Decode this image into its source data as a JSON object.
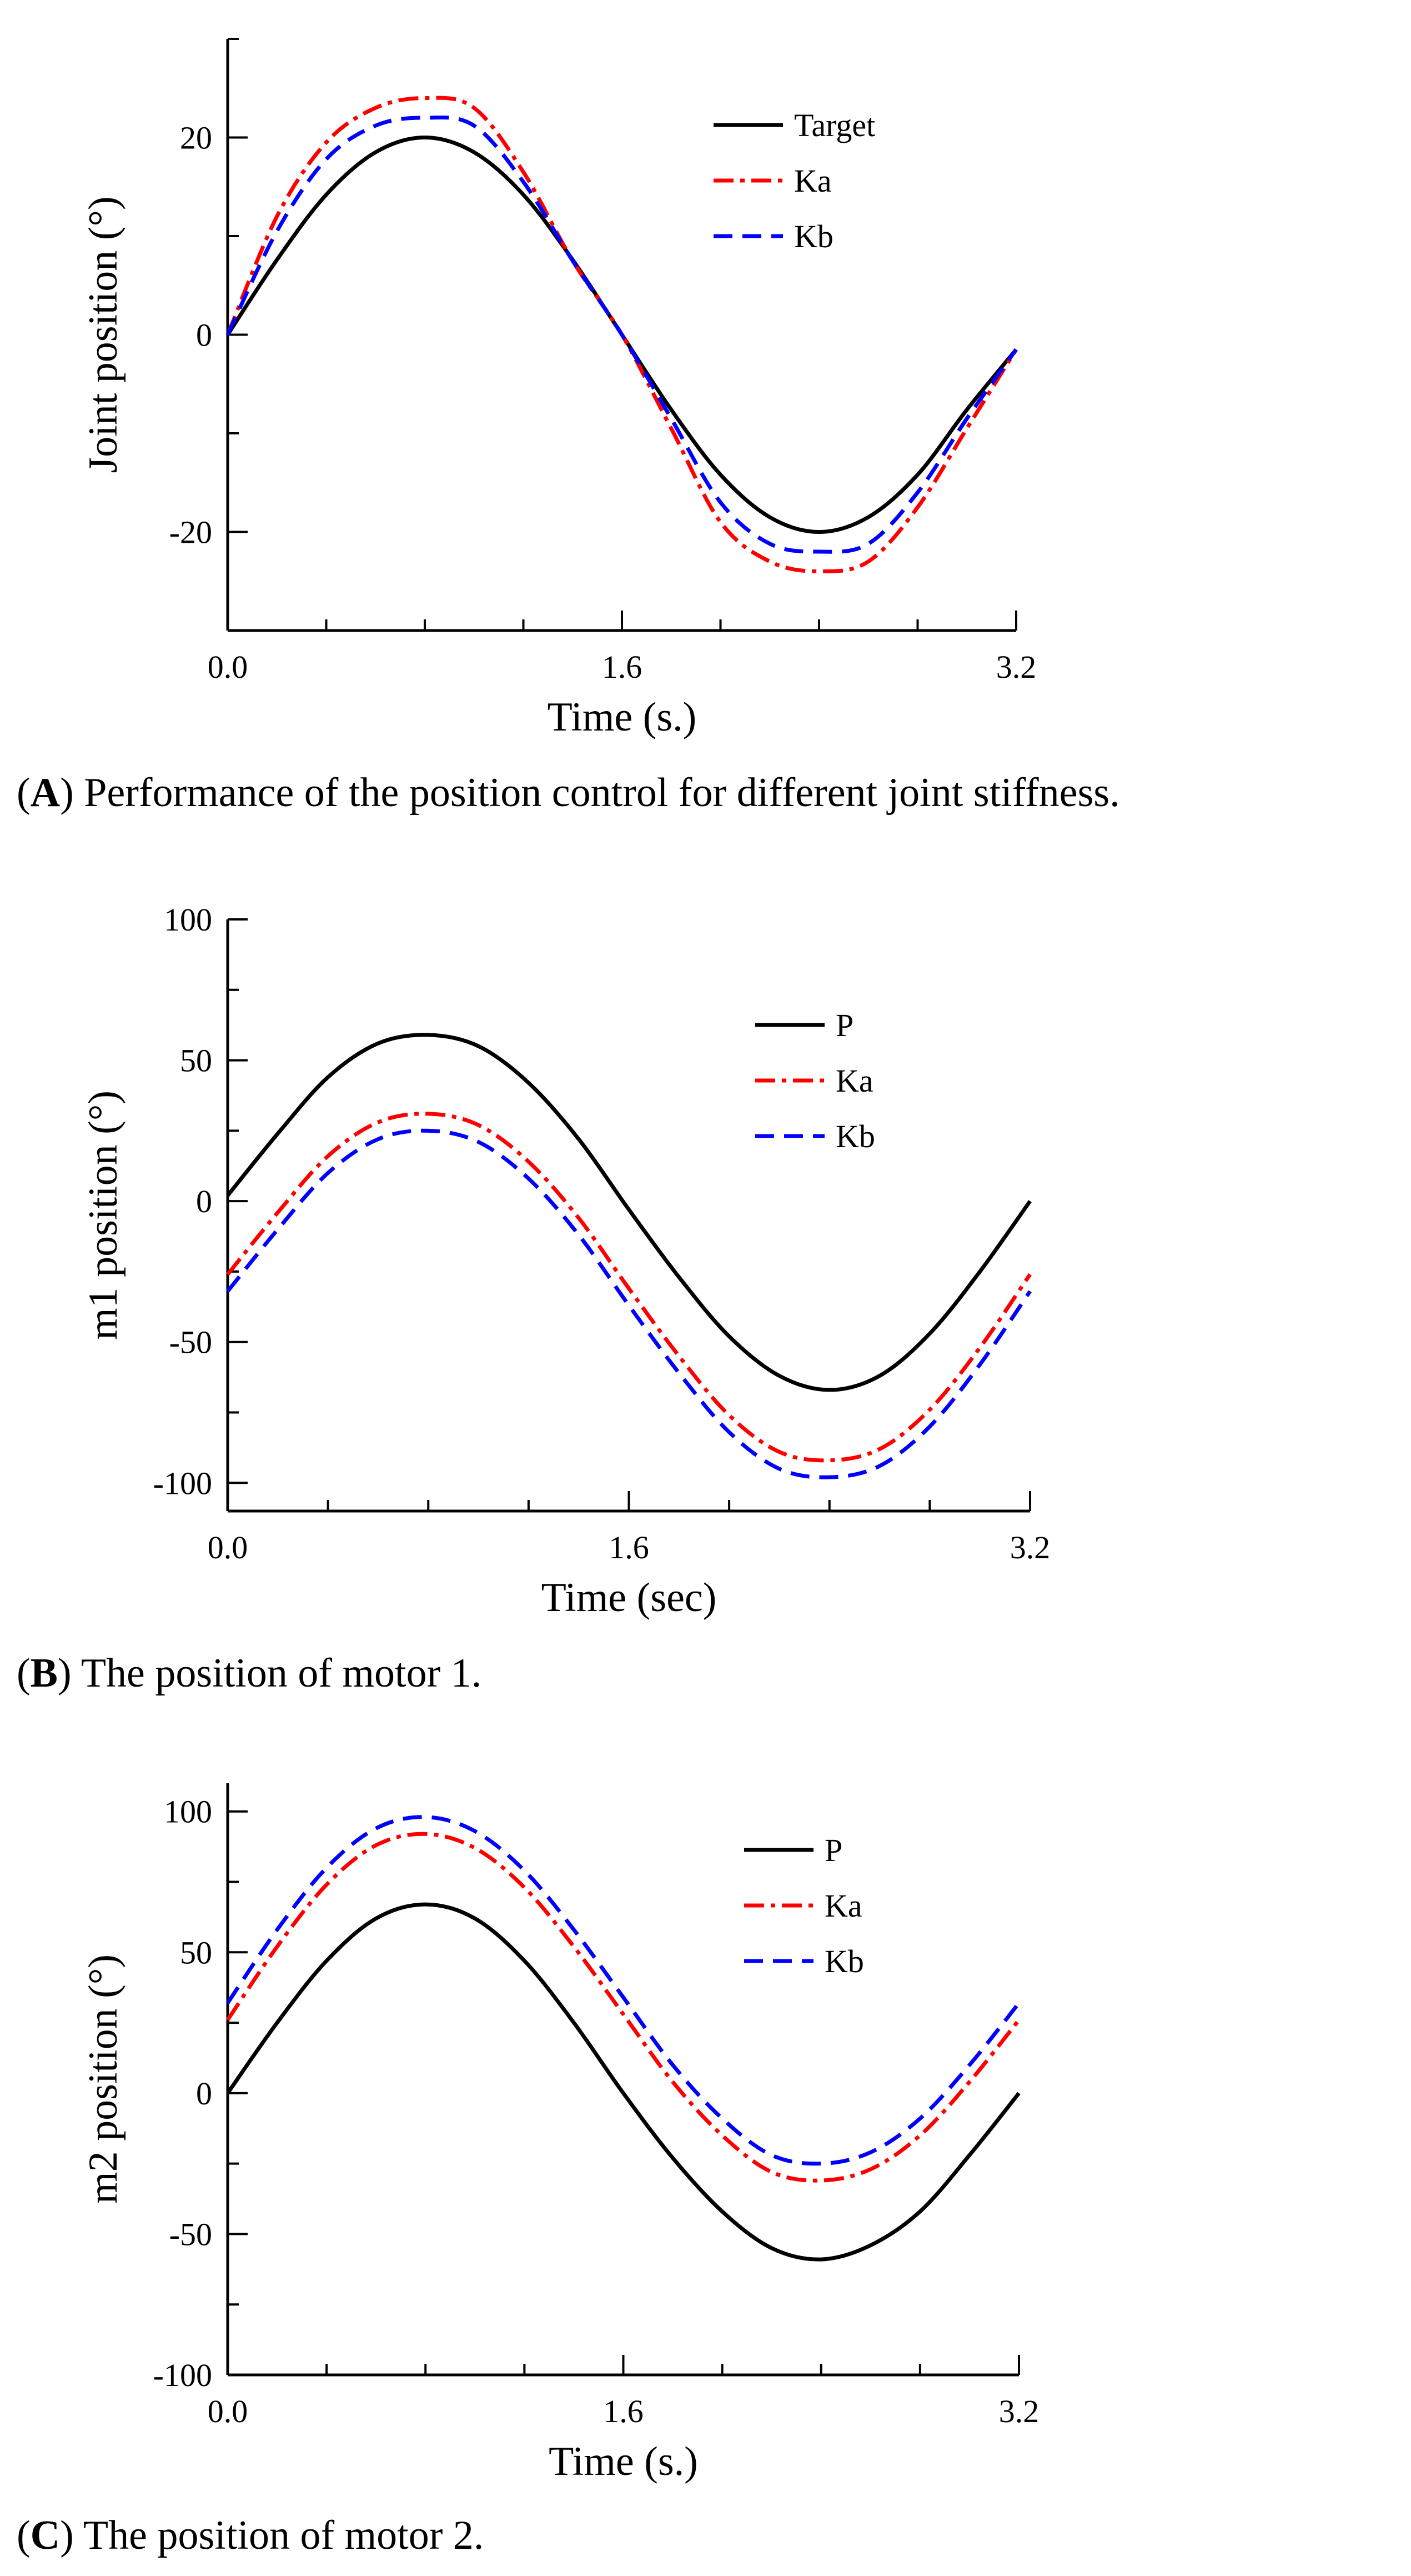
{
  "colors": {
    "black": "#000000",
    "red": "#ff0000",
    "blue": "#0000ff"
  },
  "panels": [
    {
      "caption_letter": "A",
      "caption_text": "Performance of the position control for different joint stiffness.",
      "chart_data": {
        "type": "line",
        "xlabel": "Time (s.)",
        "ylabel": "Joint position (°)",
        "xlim": [
          0,
          3.2
        ],
        "ylim": [
          -30,
          30
        ],
        "xticks": [
          0.0,
          1.6,
          3.2
        ],
        "xtick_labels": [
          "0.0",
          "1.6",
          "3.2"
        ],
        "yticks": [
          20,
          0,
          -20
        ],
        "ytick_labels": [
          "20",
          "0",
          "-20"
        ],
        "legend_position": "top-right",
        "series": [
          {
            "name": "Target",
            "style": "solid",
            "color": "#000000",
            "x": [
              0,
              0.2,
              0.4,
              0.6,
              0.8,
              1.0,
              1.2,
              1.4,
              1.6,
              1.8,
              2.0,
              2.2,
              2.4,
              2.6,
              2.8,
              3.0,
              3.2
            ],
            "y": [
              0,
              7.6,
              14.2,
              18.5,
              20.0,
              18.5,
              14.2,
              7.6,
              0,
              -7.6,
              -14.2,
              -18.5,
              -20.0,
              -18.5,
              -14.2,
              -7.6,
              -1.5
            ]
          },
          {
            "name": "Ka",
            "style": "dashdot",
            "color": "#ff0000",
            "x": [
              0,
              0.2,
              0.4,
              0.6,
              0.8,
              1.0,
              1.2,
              1.4,
              1.6,
              1.8,
              2.0,
              2.2,
              2.4,
              2.6,
              2.8,
              3.0,
              3.2
            ],
            "y": [
              0,
              12.0,
              19.5,
              23.0,
              24.0,
              23.0,
              16.5,
              7.5,
              0,
              -9.5,
              -19.0,
              -23.0,
              -24.0,
              -23.0,
              -17.5,
              -9.5,
              -1.5
            ]
          },
          {
            "name": "Kb",
            "style": "dashed",
            "color": "#0000ff",
            "x": [
              0,
              0.2,
              0.4,
              0.6,
              0.8,
              1.0,
              1.2,
              1.4,
              1.6,
              1.8,
              2.0,
              2.2,
              2.4,
              2.6,
              2.8,
              3.0,
              3.2
            ],
            "y": [
              0,
              10.5,
              17.8,
              21.2,
              22.0,
              21.2,
              15.5,
              7.5,
              0,
              -8.5,
              -17.0,
              -21.2,
              -22.0,
              -21.2,
              -16.0,
              -8.5,
              -1.5
            ]
          }
        ]
      }
    },
    {
      "caption_letter": "B",
      "caption_text": "The position of motor 1.",
      "chart_data": {
        "type": "line",
        "xlabel": "Time (sec)",
        "ylabel": "m1 position (°)",
        "xlim": [
          0,
          3.2
        ],
        "ylim": [
          -110,
          100
        ],
        "xticks": [
          0.0,
          1.6,
          3.2
        ],
        "xtick_labels": [
          "0.0",
          "1.6",
          "3.2"
        ],
        "yticks": [
          100,
          50,
          0,
          -50,
          -100
        ],
        "ytick_labels": [
          "100",
          "50",
          "0",
          "-50",
          "-100"
        ],
        "legend_position": "top-right",
        "series": [
          {
            "name": "P",
            "style": "solid",
            "color": "#000000",
            "x": [
              0,
              0.2,
              0.4,
              0.6,
              0.8,
              1.0,
              1.2,
              1.4,
              1.6,
              1.8,
              2.0,
              2.2,
              2.4,
              2.6,
              2.8,
              3.0,
              3.2
            ],
            "y": [
              2,
              24,
              44,
              56,
              59,
              55,
              42,
              22,
              -3,
              -27,
              -48,
              -62,
              -67,
              -62,
              -47,
              -25,
              0
            ]
          },
          {
            "name": "Ka",
            "style": "dashdot",
            "color": "#ff0000",
            "x": [
              0,
              0.2,
              0.4,
              0.6,
              0.8,
              1.0,
              1.2,
              1.4,
              1.6,
              1.8,
              2.0,
              2.2,
              2.4,
              2.6,
              2.8,
              3.0,
              3.2
            ],
            "y": [
              -26,
              -4,
              16,
              28,
              31,
              27,
              14,
              -6,
              -31,
              -55,
              -76,
              -89,
              -92,
              -88,
              -74,
              -52,
              -26
            ]
          },
          {
            "name": "Kb",
            "style": "dashed",
            "color": "#0000ff",
            "x": [
              0,
              0.2,
              0.4,
              0.6,
              0.8,
              1.0,
              1.2,
              1.4,
              1.6,
              1.8,
              2.0,
              2.2,
              2.4,
              2.6,
              2.8,
              3.0,
              3.2
            ],
            "y": [
              -32,
              -10,
              10,
              22,
              25,
              21,
              8,
              -12,
              -37,
              -61,
              -82,
              -95,
              -98,
              -94,
              -80,
              -58,
              -32
            ]
          }
        ]
      }
    },
    {
      "caption_letter": "C",
      "caption_text": "The position of motor 2.",
      "chart_data": {
        "type": "line",
        "xlabel": "Time (s.)",
        "ylabel": "m2 position (°)",
        "xlim": [
          0,
          3.2
        ],
        "ylim": [
          -100,
          110
        ],
        "xticks": [
          0.0,
          1.6,
          3.2
        ],
        "xtick_labels": [
          "0.0",
          "1.6",
          "3.2"
        ],
        "yticks": [
          100,
          50,
          0,
          -50,
          -100
        ],
        "ytick_labels": [
          "100",
          "50",
          "0",
          "-50",
          "-100"
        ],
        "legend_position": "top-right",
        "series": [
          {
            "name": "P",
            "style": "solid",
            "color": "#000000",
            "x": [
              0,
              0.2,
              0.4,
              0.6,
              0.8,
              1.0,
              1.2,
              1.4,
              1.6,
              1.8,
              2.0,
              2.2,
              2.4,
              2.6,
              2.8,
              3.0,
              3.2
            ],
            "y": [
              0,
              25,
              47,
              62,
              67,
              62,
              47,
              25,
              0,
              -23,
              -42,
              -55,
              -59,
              -54,
              -42,
              -22,
              0
            ]
          },
          {
            "name": "Ka",
            "style": "dashdot",
            "color": "#ff0000",
            "x": [
              0,
              0.2,
              0.4,
              0.6,
              0.8,
              1.0,
              1.2,
              1.4,
              1.6,
              1.8,
              2.0,
              2.2,
              2.4,
              2.6,
              2.8,
              3.0,
              3.2
            ],
            "y": [
              26,
              52,
              74,
              88,
              92,
              87,
              73,
              52,
              28,
              4,
              -15,
              -28,
              -31,
              -27,
              -15,
              4,
              26
            ]
          },
          {
            "name": "Kb",
            "style": "dashed",
            "color": "#0000ff",
            "x": [
              0,
              0.2,
              0.4,
              0.6,
              0.8,
              1.0,
              1.2,
              1.4,
              1.6,
              1.8,
              2.0,
              2.2,
              2.4,
              2.6,
              2.8,
              3.0,
              3.2
            ],
            "y": [
              32,
              58,
              80,
              94,
              98,
              93,
              79,
              58,
              34,
              10,
              -9,
              -22,
              -25,
              -21,
              -9,
              10,
              32
            ]
          }
        ]
      }
    }
  ]
}
